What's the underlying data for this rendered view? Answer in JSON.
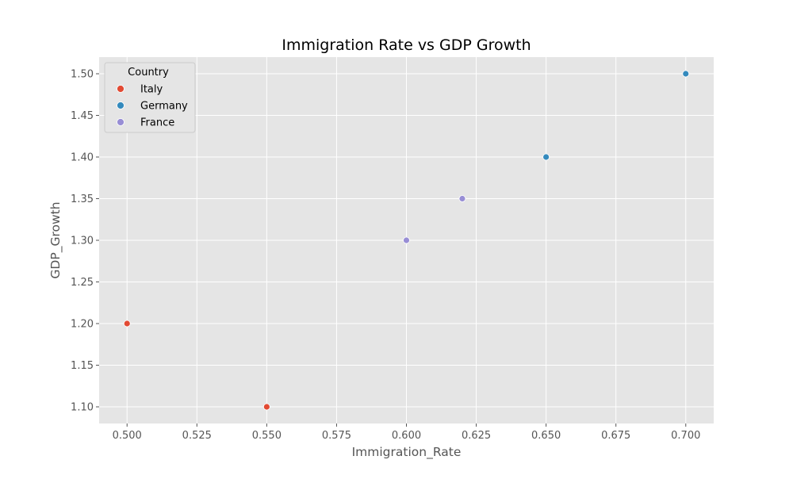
{
  "chart_data": {
    "type": "scatter",
    "title": "Immigration Rate vs GDP Growth",
    "xlabel": "Immigration_Rate",
    "ylabel": "GDP_Growth",
    "xlim": [
      0.49,
      0.71
    ],
    "ylim": [
      1.08,
      1.52
    ],
    "xticks": [
      0.5,
      0.525,
      0.55,
      0.575,
      0.6,
      0.625,
      0.65,
      0.675,
      0.7
    ],
    "xtick_labels": [
      "0.500",
      "0.525",
      "0.550",
      "0.575",
      "0.600",
      "0.625",
      "0.650",
      "0.675",
      "0.700"
    ],
    "yticks": [
      1.1,
      1.15,
      1.2,
      1.25,
      1.3,
      1.35,
      1.4,
      1.45,
      1.5
    ],
    "ytick_labels": [
      "1.10",
      "1.15",
      "1.20",
      "1.25",
      "1.30",
      "1.35",
      "1.40",
      "1.45",
      "1.50"
    ],
    "grid": true,
    "background": "#e5e5e5",
    "legend": {
      "title": "Country",
      "position": "top-left"
    },
    "series": [
      {
        "name": "Italy",
        "color": "#e24a33",
        "points": [
          {
            "x": 0.5,
            "y": 1.2
          },
          {
            "x": 0.55,
            "y": 1.1
          }
        ]
      },
      {
        "name": "Germany",
        "color": "#348abd",
        "points": [
          {
            "x": 0.65,
            "y": 1.4
          },
          {
            "x": 0.7,
            "y": 1.5
          }
        ]
      },
      {
        "name": "France",
        "color": "#988ed5",
        "points": [
          {
            "x": 0.6,
            "y": 1.3
          },
          {
            "x": 0.62,
            "y": 1.35
          }
        ]
      }
    ]
  }
}
